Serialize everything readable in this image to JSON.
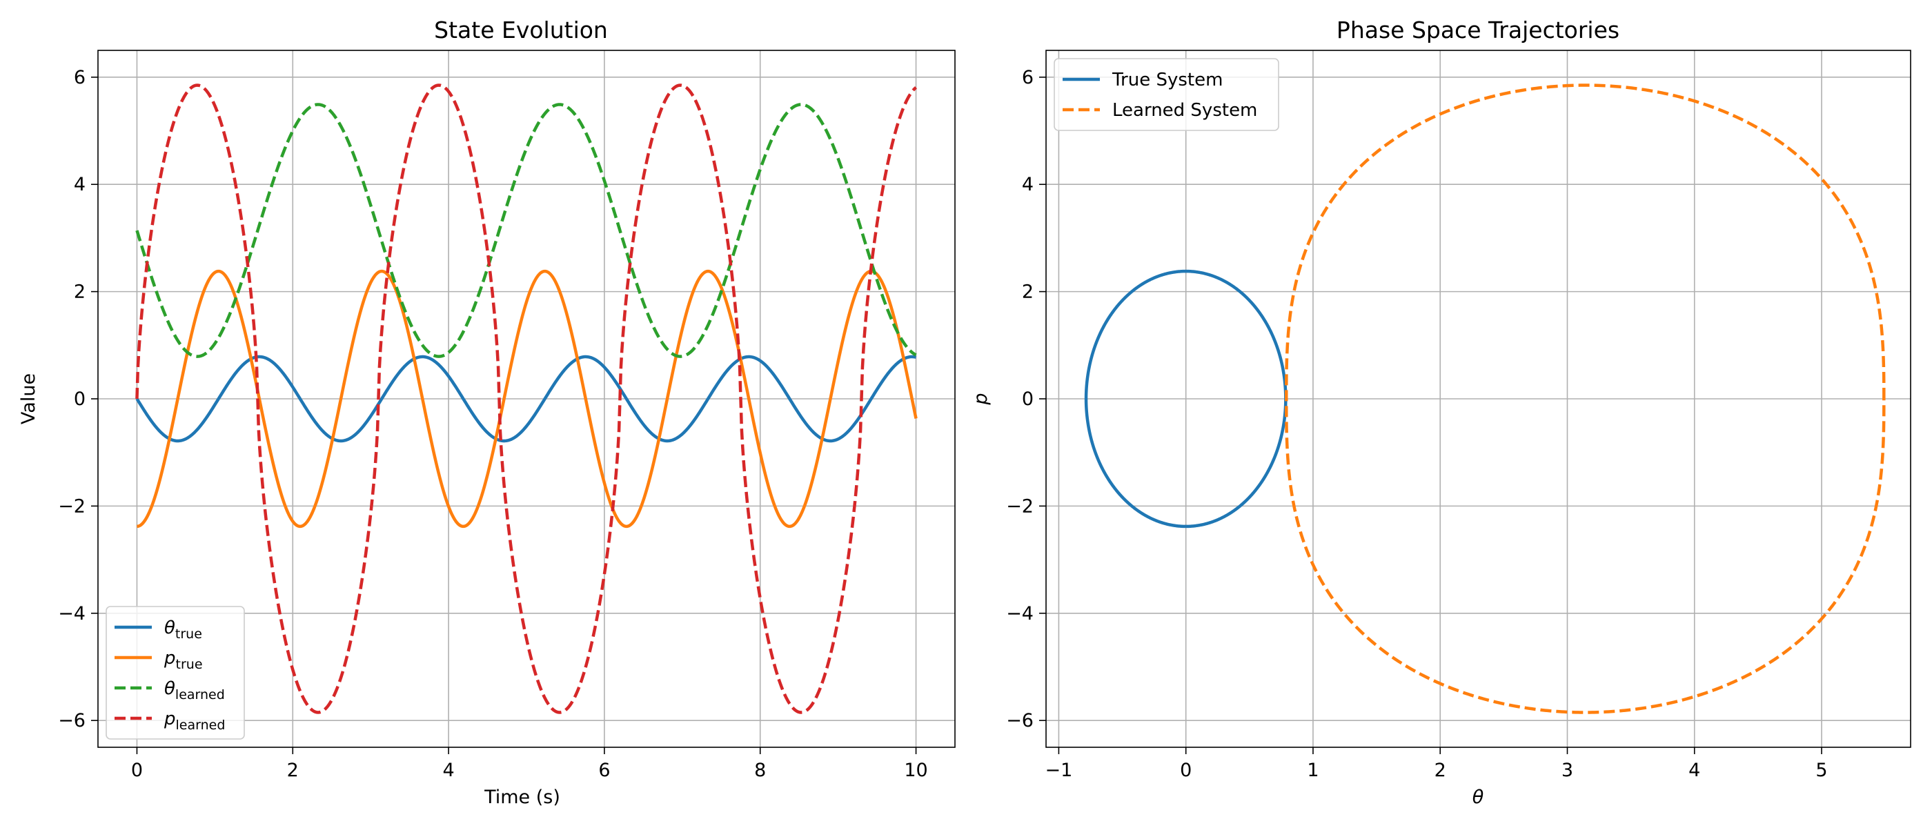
{
  "chart_data": [
    {
      "type": "line",
      "title": "State Evolution",
      "xlabel": "Time (s)",
      "ylabel": "Value",
      "xlim": [
        -0.5,
        10.5
      ],
      "ylim": [
        -6.5,
        6.5
      ],
      "xticks": [
        0,
        2,
        4,
        6,
        8,
        10
      ],
      "yticks": [
        -6,
        -4,
        -2,
        0,
        2,
        4,
        6
      ],
      "xtick_labels": [
        "0",
        "2",
        "4",
        "6",
        "8",
        "10"
      ],
      "ytick_labels": [
        "−6",
        "−4",
        "−2",
        "0",
        "2",
        "4",
        "6"
      ],
      "grid": true,
      "legend_position": "lower-left",
      "series": [
        {
          "name": "θ_true",
          "label_main": "θ",
          "label_sub": "true",
          "color": "#1f77b4",
          "dash": "solid",
          "model": {
            "kind": "sin",
            "amp": -0.785,
            "period": 2.0944,
            "offset": 0,
            "phase": 0.5236
          }
        },
        {
          "name": "p_true",
          "label_main": "p",
          "label_sub": "true",
          "color": "#ff7f0e",
          "dash": "solid",
          "model": {
            "kind": "sin",
            "amp": -2.38,
            "period": 2.0944,
            "offset": 0,
            "phase": 0
          }
        },
        {
          "name": "θ_learned",
          "label_main": "θ",
          "label_sub": "learned",
          "color": "#2ca02c",
          "dash": "dashed",
          "model": {
            "kind": "sin",
            "amp": -2.35,
            "period": 3.1,
            "offset": 3.14,
            "phase": 0.775
          }
        },
        {
          "name": "p_learned",
          "label_main": "p",
          "label_sub": "learned",
          "color": "#d62728",
          "dash": "dashed",
          "model": {
            "kind": "peaks",
            "amp": 5.85,
            "period": 3.1,
            "peak": 0.775,
            "sharp": 1.6
          }
        }
      ]
    },
    {
      "type": "line",
      "title": "Phase Space Trajectories",
      "xlabel": "θ",
      "ylabel": "p",
      "xlim": [
        -1.1,
        5.7
      ],
      "ylim": [
        -6.5,
        6.5
      ],
      "xticks": [
        -1,
        0,
        1,
        2,
        3,
        4,
        5
      ],
      "yticks": [
        -6,
        -4,
        -2,
        0,
        2,
        4,
        6
      ],
      "xtick_labels": [
        "−1",
        "0",
        "1",
        "2",
        "3",
        "4",
        "5"
      ],
      "ytick_labels": [
        "−6",
        "−4",
        "−2",
        "0",
        "2",
        "4",
        "6"
      ],
      "grid": true,
      "legend_position": "upper-left",
      "series": [
        {
          "name": "True System",
          "color": "#1f77b4",
          "dash": "solid",
          "model": {
            "kind": "ellipse",
            "cx": 0,
            "cy": 0,
            "rx": 0.785,
            "ry": 2.38,
            "power": 1
          }
        },
        {
          "name": "Learned System",
          "color": "#ff7f0e",
          "dash": "dashed",
          "model": {
            "kind": "lemon",
            "cx": 3.14,
            "cy": 0,
            "rx": 2.35,
            "ry": 5.85
          }
        }
      ]
    }
  ]
}
